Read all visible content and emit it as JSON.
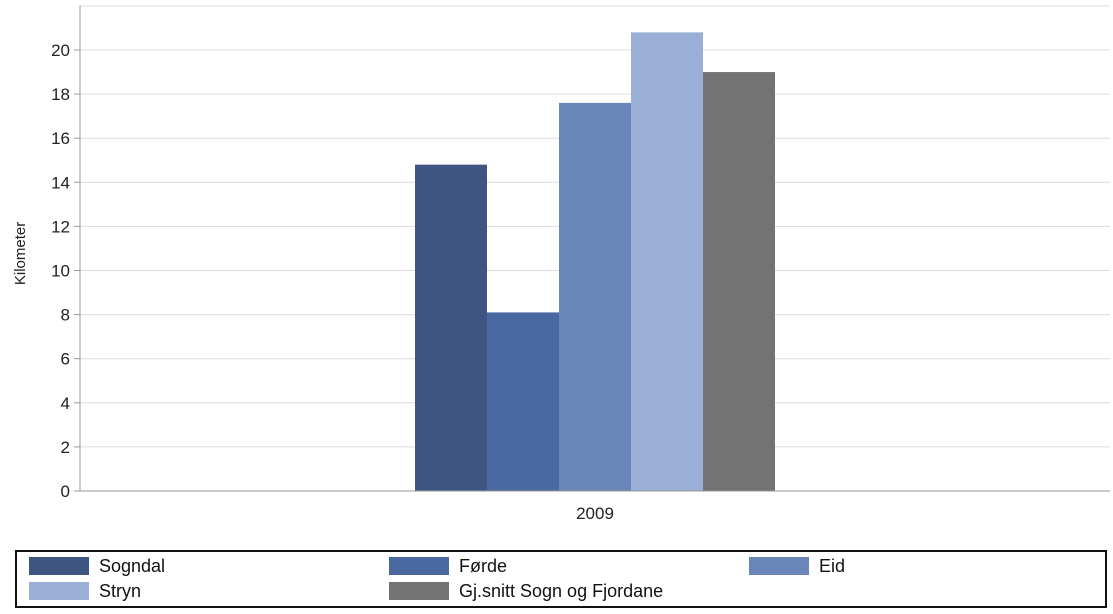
{
  "chart_data": {
    "type": "bar",
    "categories": [
      "2009"
    ],
    "series": [
      {
        "name": "Sogndal",
        "values": [
          14.8
        ],
        "color": "#3d5580"
      },
      {
        "name": "Førde",
        "values": [
          8.1
        ],
        "color": "#4a68a0"
      },
      {
        "name": "Eid",
        "values": [
          17.6
        ],
        "color": "#6a86b8"
      },
      {
        "name": "Stryn",
        "values": [
          20.8
        ],
        "color": "#9aafd6"
      },
      {
        "name": "Gj.snitt Sogn og Fjordane",
        "values": [
          19.0
        ],
        "color": "#737373"
      }
    ],
    "title": "",
    "xlabel": "",
    "ylabel": "Kilometer",
    "ylim": [
      0,
      22
    ],
    "yticks": [
      0,
      2,
      4,
      6,
      8,
      10,
      12,
      14,
      16,
      18,
      20
    ],
    "grid": true,
    "legend_position": "bottom"
  }
}
